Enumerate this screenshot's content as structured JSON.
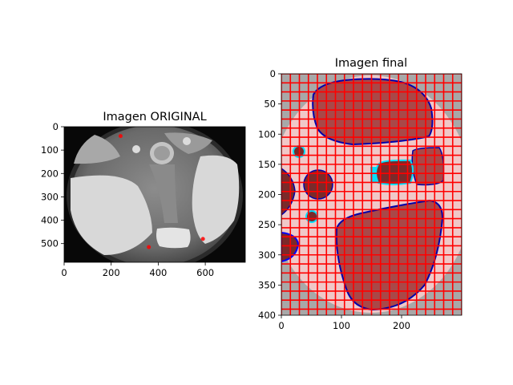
{
  "chart_data": [
    {
      "type": "image",
      "title": "Imagen ORIGINAL",
      "xlim": [
        0,
        770
      ],
      "ylim": [
        580,
        0
      ],
      "xticks": [
        0,
        200,
        400,
        600
      ],
      "yticks": [
        0,
        100,
        200,
        300,
        400,
        500
      ],
      "content": "grayscale-wheel-photo",
      "marks": [
        {
          "x": 240,
          "y": 40,
          "color": "#ff0000"
        },
        {
          "x": 360,
          "y": 515,
          "color": "#ff0000"
        },
        {
          "x": 590,
          "y": 480,
          "color": "#ff0000"
        }
      ]
    },
    {
      "type": "image",
      "title": "Imagen final",
      "xlim": [
        0,
        300
      ],
      "ylim": [
        400,
        0
      ],
      "xticks": [
        0,
        100,
        200
      ],
      "yticks": [
        0,
        50,
        100,
        150,
        200,
        250,
        300,
        350,
        400
      ],
      "content": "segmented-wheel-grid",
      "grid_cell_size": 15,
      "grid_color": "#ff0000",
      "region_color": "#a94848",
      "background_color": "#f0c8c8",
      "outline_color": "#00e0ff"
    }
  ]
}
